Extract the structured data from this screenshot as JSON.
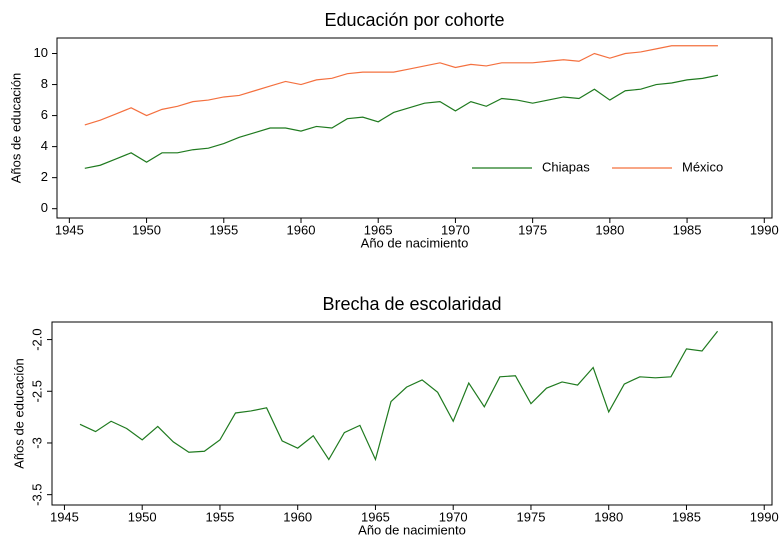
{
  "chart_data": [
    {
      "type": "line",
      "title": "Educación por cohorte",
      "xlabel": "Año de nacimiento",
      "ylabel": "Años de educación",
      "x": [
        1946,
        1947,
        1948,
        1949,
        1950,
        1951,
        1952,
        1953,
        1954,
        1955,
        1956,
        1957,
        1958,
        1959,
        1960,
        1961,
        1962,
        1963,
        1964,
        1965,
        1966,
        1967,
        1968,
        1969,
        1970,
        1971,
        1972,
        1973,
        1974,
        1975,
        1976,
        1977,
        1978,
        1979,
        1980,
        1981,
        1982,
        1983,
        1984,
        1985,
        1986,
        1987
      ],
      "series": [
        {
          "name": "Chiapas",
          "color": "#1f7a1f",
          "values": [
            2.6,
            2.8,
            3.2,
            3.6,
            3.0,
            3.6,
            3.6,
            3.8,
            3.9,
            4.2,
            4.6,
            4.9,
            5.2,
            5.2,
            5.0,
            5.3,
            5.2,
            5.8,
            5.9,
            5.6,
            6.2,
            6.5,
            6.8,
            6.9,
            6.3,
            6.9,
            6.6,
            7.1,
            7.0,
            6.8,
            7.0,
            7.2,
            7.1,
            7.7,
            7.0,
            7.6,
            7.7,
            8.0,
            8.1,
            8.3,
            8.4,
            8.6
          ]
        },
        {
          "name": "México",
          "color": "#f4703f",
          "values": [
            5.4,
            5.7,
            6.1,
            6.5,
            6.0,
            6.4,
            6.6,
            6.9,
            7.0,
            7.2,
            7.3,
            7.6,
            7.9,
            8.2,
            8.0,
            8.3,
            8.4,
            8.7,
            8.8,
            8.8,
            8.8,
            9.0,
            9.2,
            9.4,
            9.1,
            9.3,
            9.2,
            9.4,
            9.4,
            9.4,
            9.5,
            9.6,
            9.5,
            10.0,
            9.7,
            10.0,
            10.1,
            10.3,
            10.5,
            10.5,
            10.5,
            10.5
          ]
        }
      ],
      "xlim": [
        1944.2,
        1990.5
      ],
      "xticks": [
        1945,
        1950,
        1955,
        1960,
        1965,
        1970,
        1975,
        1980,
        1985,
        1990
      ],
      "ylim": [
        -0.6,
        11
      ],
      "yticks": [
        0,
        2,
        4,
        6,
        8,
        10
      ],
      "legend": "lower right"
    },
    {
      "type": "line",
      "title": "Brecha de escolaridad",
      "xlabel": "Año de nacimiento",
      "ylabel": "Años de educación",
      "x": [
        1946,
        1947,
        1948,
        1949,
        1950,
        1951,
        1952,
        1953,
        1954,
        1955,
        1956,
        1957,
        1958,
        1959,
        1960,
        1961,
        1962,
        1963,
        1964,
        1965,
        1966,
        1967,
        1968,
        1969,
        1970,
        1971,
        1972,
        1973,
        1974,
        1975,
        1976,
        1977,
        1978,
        1979,
        1980,
        1981,
        1982,
        1983,
        1984,
        1985,
        1986,
        1987
      ],
      "series": [
        {
          "color": "#1f7a1f",
          "values": [
            -2.82,
            -2.89,
            -2.79,
            -2.86,
            -2.97,
            -2.84,
            -2.99,
            -3.09,
            -3.08,
            -2.97,
            -2.71,
            -2.69,
            -2.66,
            -2.98,
            -3.05,
            -2.93,
            -3.16,
            -2.9,
            -2.83,
            -3.16,
            -2.6,
            -2.46,
            -2.39,
            -2.51,
            -2.79,
            -2.42,
            -2.65,
            -2.36,
            -2.35,
            -2.62,
            -2.47,
            -2.41,
            -2.44,
            -2.27,
            -2.7,
            -2.43,
            -2.36,
            -2.37,
            -2.36,
            -2.09,
            -2.11,
            -1.92
          ]
        }
      ],
      "xlim": [
        1944.2,
        1990.5
      ],
      "xticks": [
        1945,
        1950,
        1955,
        1960,
        1965,
        1970,
        1975,
        1980,
        1985,
        1990
      ],
      "ylim": [
        -3.6,
        -1.83
      ],
      "yticks": [
        -3.5,
        -3,
        -2.5,
        {
          "value": -2.0,
          "label": "-2.0"
        }
      ]
    }
  ]
}
